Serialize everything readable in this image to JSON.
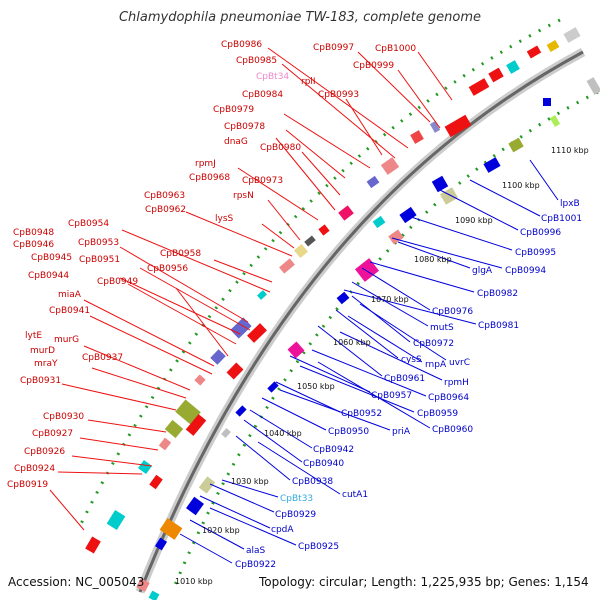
{
  "title": "Chlamydophila pneumoniae TW-183, complete genome",
  "footer": {
    "accession": "Accession: NC_005043",
    "summary": "Topology: circular; Length: 1,225,935 bp; Genes: 1,154"
  },
  "scale_labels": [
    "1110 kbp",
    "1100 kbp",
    "1090 kbp",
    "1080 kbp",
    "1070 kbp",
    "1060 kbp",
    "1050 kbp",
    "1040 kbp",
    "1030 kbp",
    "1020 kbp",
    "1010 kbp"
  ],
  "outer_labels": [
    {
      "text": "CpB0997",
      "color": "red"
    },
    {
      "text": "CpB1000",
      "color": "red"
    },
    {
      "text": "CpB0986",
      "color": "red"
    },
    {
      "text": "CpB0985",
      "color": "red"
    },
    {
      "text": "CpB0999",
      "color": "red"
    },
    {
      "text": "CpBt34",
      "color": "pink"
    },
    {
      "text": "rplI",
      "color": "red"
    },
    {
      "text": "CpB0984",
      "color": "red"
    },
    {
      "text": "CpB0993",
      "color": "red"
    },
    {
      "text": "CpB0979",
      "color": "red"
    },
    {
      "text": "CpB0978",
      "color": "red"
    },
    {
      "text": "dnaG",
      "color": "red"
    },
    {
      "text": "CpB0980",
      "color": "red"
    },
    {
      "text": "rpmJ",
      "color": "red"
    },
    {
      "text": "CpB0968",
      "color": "red"
    },
    {
      "text": "CpB0973",
      "color": "red"
    },
    {
      "text": "rpsN",
      "color": "red"
    },
    {
      "text": "CpB0963",
      "color": "red"
    },
    {
      "text": "CpB0962",
      "color": "red"
    },
    {
      "text": "lysS",
      "color": "red"
    },
    {
      "text": "CpB0954",
      "color": "red"
    },
    {
      "text": "CpB0948",
      "color": "red"
    },
    {
      "text": "CpB0953",
      "color": "red"
    },
    {
      "text": "CpB0946",
      "color": "red"
    },
    {
      "text": "CpB0958",
      "color": "red"
    },
    {
      "text": "CpB0945",
      "color": "red"
    },
    {
      "text": "CpB0951",
      "color": "red"
    },
    {
      "text": "CpB0956",
      "color": "red"
    },
    {
      "text": "CpB0944",
      "color": "red"
    },
    {
      "text": "CpB0949",
      "color": "red"
    },
    {
      "text": "miaA",
      "color": "red"
    },
    {
      "text": "CpB0941",
      "color": "red"
    },
    {
      "text": "lytE",
      "color": "red"
    },
    {
      "text": "murG",
      "color": "red"
    },
    {
      "text": "murD",
      "color": "red"
    },
    {
      "text": "CpB0937",
      "color": "red"
    },
    {
      "text": "mraY",
      "color": "red"
    },
    {
      "text": "CpB0931",
      "color": "red"
    },
    {
      "text": "CpB0930",
      "color": "red"
    },
    {
      "text": "CpB0927",
      "color": "red"
    },
    {
      "text": "CpB0926",
      "color": "red"
    },
    {
      "text": "CpB0924",
      "color": "red"
    },
    {
      "text": "CpB0919",
      "color": "red"
    }
  ],
  "inner_labels": [
    {
      "text": "lpxB",
      "color": "blue"
    },
    {
      "text": "CpB1001",
      "color": "blue"
    },
    {
      "text": "CpB0996",
      "color": "blue"
    },
    {
      "text": "CpB0995",
      "color": "blue"
    },
    {
      "text": "CpB0994",
      "color": "blue"
    },
    {
      "text": "glgA",
      "color": "blue"
    },
    {
      "text": "CpB0982",
      "color": "blue"
    },
    {
      "text": "CpB0976",
      "color": "blue"
    },
    {
      "text": "mutS",
      "color": "blue"
    },
    {
      "text": "CpB0981",
      "color": "blue"
    },
    {
      "text": "CpB0972",
      "color": "blue"
    },
    {
      "text": "uvrC",
      "color": "blue"
    },
    {
      "text": "cysS",
      "color": "blue"
    },
    {
      "text": "rnpA",
      "color": "blue"
    },
    {
      "text": "CpB0961",
      "color": "blue"
    },
    {
      "text": "rpmH",
      "color": "blue"
    },
    {
      "text": "CpB0957",
      "color": "blue"
    },
    {
      "text": "CpB0964",
      "color": "blue"
    },
    {
      "text": "CpB0952",
      "color": "blue"
    },
    {
      "text": "CpB0959",
      "color": "blue"
    },
    {
      "text": "CpB0950",
      "color": "blue"
    },
    {
      "text": "priA",
      "color": "blue"
    },
    {
      "text": "CpB0960",
      "color": "blue"
    },
    {
      "text": "CpB0942",
      "color": "blue"
    },
    {
      "text": "CpB0940",
      "color": "blue"
    },
    {
      "text": "CpB0938",
      "color": "blue"
    },
    {
      "text": "cutA1",
      "color": "blue"
    },
    {
      "text": "CpBt33",
      "color": "cyan"
    },
    {
      "text": "CpB0929",
      "color": "blue"
    },
    {
      "text": "cpdA",
      "color": "blue"
    },
    {
      "text": "CpB0925",
      "color": "blue"
    },
    {
      "text": "alaS",
      "color": "blue"
    },
    {
      "text": "CpB0922",
      "color": "blue"
    }
  ],
  "colors": {
    "forward_gene": "#ee1111",
    "reverse_gene": "#0000dd",
    "label_red": "#cc0000",
    "label_blue": "#0000cc",
    "backbone": "#888888",
    "tick_dots": "#229922"
  }
}
